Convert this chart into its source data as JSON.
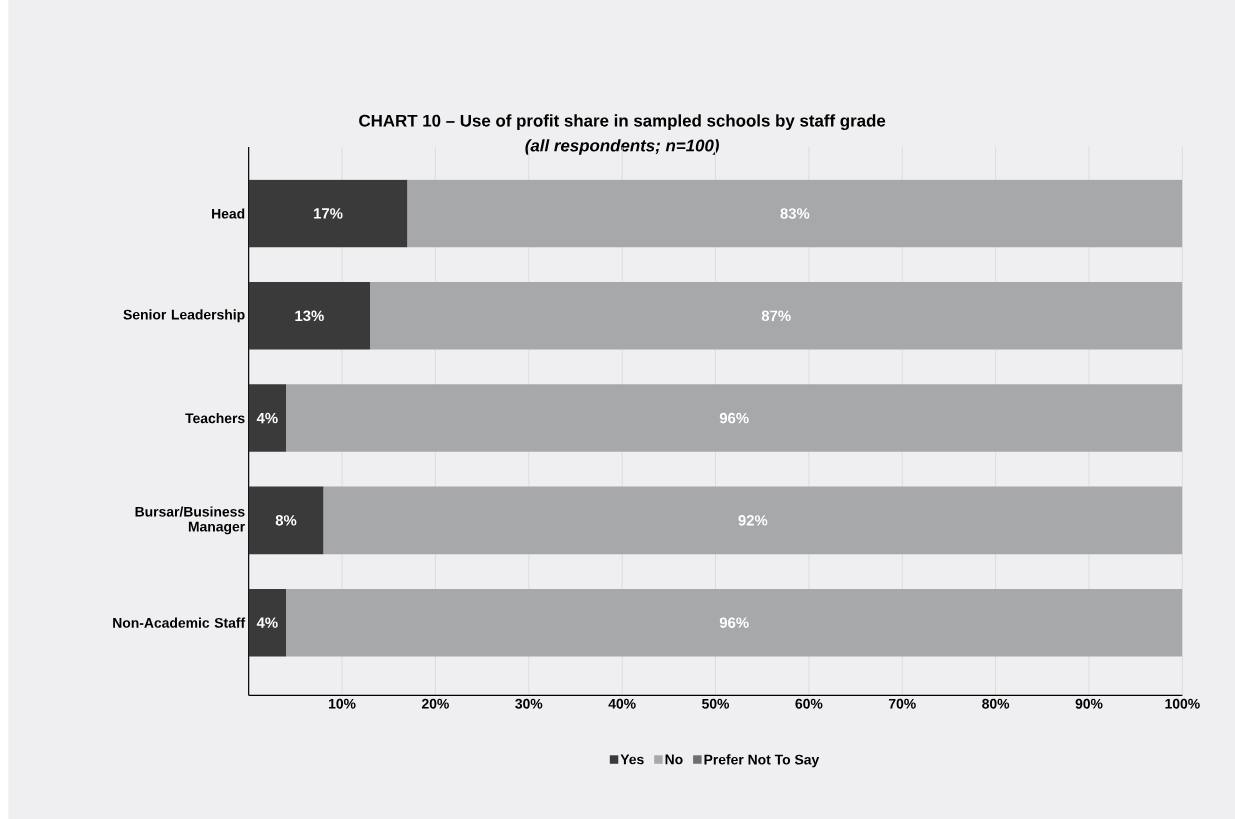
{
  "chart_data": {
    "type": "bar",
    "orientation": "horizontal",
    "stacked": true,
    "title": "CHART 10 – Use of profit share in sampled schools by staff grade",
    "subtitle": "(all respondents; n=100)",
    "categories": [
      "Head",
      "Senior Leadership",
      "Teachers",
      "Bursar/Business Manager",
      "Non-Academic Staff"
    ],
    "series": [
      {
        "name": "Yes",
        "color": "#3a3a3b",
        "values": [
          17,
          13,
          4,
          8,
          4
        ],
        "value_labels": [
          "17%",
          "13%",
          "4%",
          "8%",
          "4%"
        ]
      },
      {
        "name": "No",
        "color": "#a7a8aa",
        "values": [
          83,
          87,
          96,
          92,
          96
        ],
        "value_labels": [
          "83%",
          "87%",
          "96%",
          "92%",
          "96%"
        ]
      },
      {
        "name": "Prefer Not To Say",
        "color": "#6d6e70",
        "values": [
          0,
          0,
          0,
          0,
          0
        ]
      }
    ],
    "xlim": [
      0,
      100
    ],
    "xticks": [
      {
        "value": 10,
        "label": "10%"
      },
      {
        "value": 20,
        "label": "20%"
      },
      {
        "value": 30,
        "label": "30%"
      },
      {
        "value": 40,
        "label": "40%"
      },
      {
        "value": 50,
        "label": "50%"
      },
      {
        "value": 60,
        "label": "60%"
      },
      {
        "value": 70,
        "label": "70%"
      },
      {
        "value": 80,
        "label": "80%"
      },
      {
        "value": 90,
        "label": "90%"
      },
      {
        "value": 100,
        "label": "100%"
      }
    ],
    "grid": "x",
    "legend": "bottom"
  }
}
